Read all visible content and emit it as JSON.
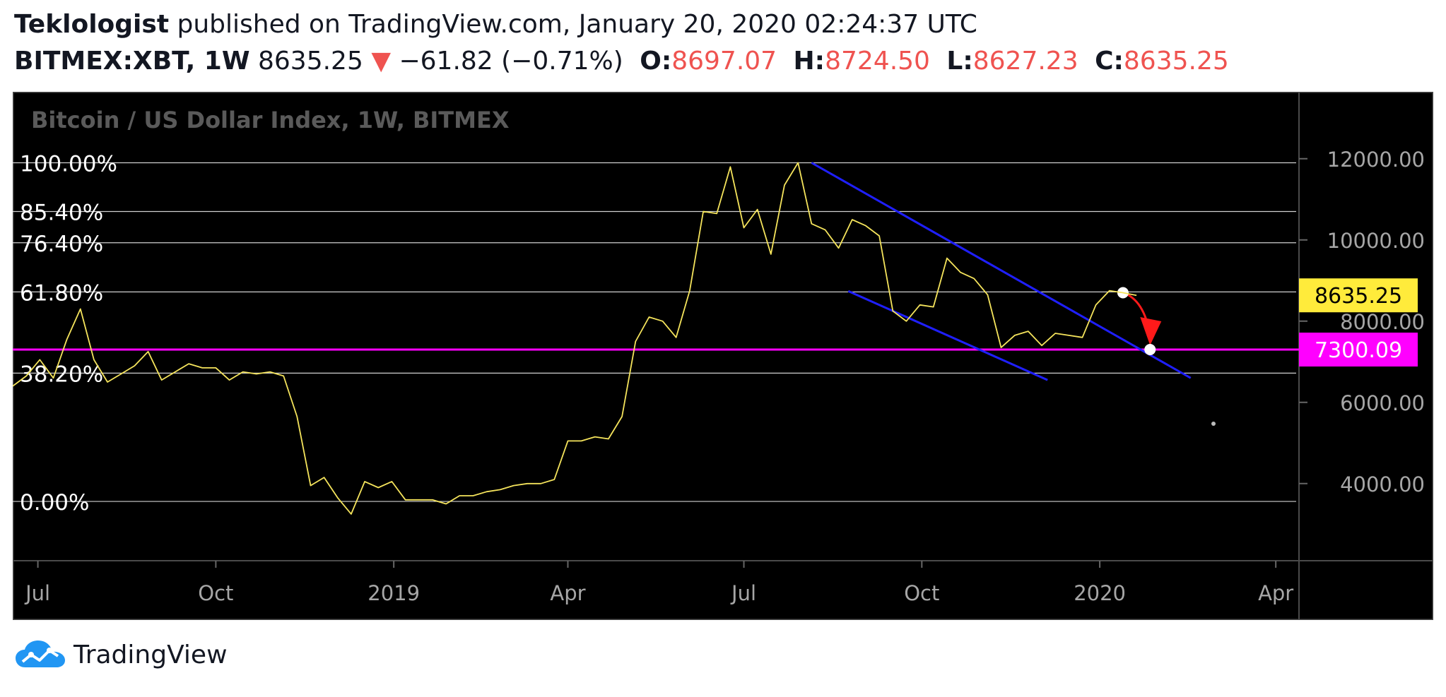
{
  "header": {
    "author": "Teklologist",
    "published_text": "published on TradingView.com, January 20, 2020 02:24:37 UTC",
    "symbol": "BITMEX:XBT, 1W",
    "last": "8635.25",
    "change_arrow": "▼",
    "change": "−61.82 (−0.71%)",
    "ohlc": [
      {
        "key": "O:",
        "value": "8697.07"
      },
      {
        "key": "H:",
        "value": "8724.50"
      },
      {
        "key": "L:",
        "value": "8627.23"
      },
      {
        "key": "C:",
        "value": "8635.25"
      }
    ]
  },
  "footer": {
    "brand": "TradingView",
    "icon": "tradingview-cloud-logo-icon"
  },
  "colors": {
    "chart_bg": "#000000",
    "price_line": "#f5e45c",
    "fib_line": "#d0d0d0",
    "support_line": "#ff00ff",
    "channel": "#1f1fff",
    "arrow": "#ff1a1a",
    "last_price_badge": "#ffeb3b",
    "support_badge": "#ff00ff",
    "axis_text": "#a6a6a6",
    "border": "#4a4a4a"
  },
  "chart_data": {
    "type": "line",
    "title": "Bitcoin / US Dollar Index, 1W, BITMEX",
    "y_axis": {
      "min": 2100,
      "max": 13300,
      "ticks": [
        "12000.00",
        "10000.00",
        "8000.00",
        "6000.00",
        "4000.00"
      ]
    },
    "x_axis": {
      "start": "2018-06-18",
      "end": "2020-04-13",
      "ticks": [
        {
          "label": "Jul",
          "date": "2018-07-01"
        },
        {
          "label": "Oct",
          "date": "2018-10-01"
        },
        {
          "label": "2019",
          "date": "2019-01-01"
        },
        {
          "label": "Apr",
          "date": "2019-04-01"
        },
        {
          "label": "Jul",
          "date": "2019-07-01"
        },
        {
          "label": "Oct",
          "date": "2019-10-01"
        },
        {
          "label": "2020",
          "date": "2020-01-01"
        },
        {
          "label": "Apr",
          "date": "2020-04-01"
        }
      ]
    },
    "series": [
      {
        "x": [
          "2018-06-18",
          "2018-06-25",
          "2018-07-02",
          "2018-07-09",
          "2018-07-16",
          "2018-07-23",
          "2018-07-30",
          "2018-08-06",
          "2018-08-13",
          "2018-08-20",
          "2018-08-27",
          "2018-09-03",
          "2018-09-10",
          "2018-09-17",
          "2018-09-24",
          "2018-10-01",
          "2018-10-08",
          "2018-10-15",
          "2018-10-22",
          "2018-10-29",
          "2018-11-05",
          "2018-11-12",
          "2018-11-19",
          "2018-11-26",
          "2018-12-03",
          "2018-12-10",
          "2018-12-17",
          "2018-12-24",
          "2018-12-31",
          "2019-01-07",
          "2019-01-14",
          "2019-01-21",
          "2019-01-28",
          "2019-02-04",
          "2019-02-11",
          "2019-02-18",
          "2019-02-25",
          "2019-03-04",
          "2019-03-11",
          "2019-03-18",
          "2019-03-25",
          "2019-04-01",
          "2019-04-08",
          "2019-04-15",
          "2019-04-22",
          "2019-04-29",
          "2019-05-06",
          "2019-05-13",
          "2019-05-20",
          "2019-05-27",
          "2019-06-03",
          "2019-06-10",
          "2019-06-17",
          "2019-06-24",
          "2019-07-01",
          "2019-07-08",
          "2019-07-15",
          "2019-07-22",
          "2019-07-29",
          "2019-08-05",
          "2019-08-12",
          "2019-08-19",
          "2019-08-26",
          "2019-09-02",
          "2019-09-09",
          "2019-09-16",
          "2019-09-23",
          "2019-09-30",
          "2019-10-07",
          "2019-10-14",
          "2019-10-21",
          "2019-10-28",
          "2019-11-04",
          "2019-11-11",
          "2019-11-18",
          "2019-11-25",
          "2019-12-02",
          "2019-12-09",
          "2019-12-16",
          "2019-12-23",
          "2019-12-30",
          "2020-01-06",
          "2020-01-13",
          "2020-01-20"
        ],
        "values": [
          6400,
          6650,
          7050,
          6600,
          7550,
          8300,
          7050,
          6500,
          6700,
          6900,
          7250,
          6550,
          6750,
          6950,
          6850,
          6850,
          6550,
          6750,
          6700,
          6750,
          6650,
          5650,
          3950,
          4150,
          3650,
          3250,
          4050,
          3900,
          4050,
          3600,
          3600,
          3600,
          3500,
          3700,
          3700,
          3800,
          3850,
          3950,
          4000,
          4000,
          4100,
          5050,
          5050,
          5150,
          5100,
          5650,
          7500,
          8100,
          8000,
          7600,
          8750,
          10700,
          10650,
          11800,
          10300,
          10750,
          9650,
          11350,
          11900,
          10400,
          10250,
          9800,
          10500,
          10350,
          10100,
          8250,
          8000,
          8400,
          8350,
          9550,
          9200,
          9050,
          8650,
          7350,
          7650,
          7750,
          7400,
          7700,
          7650,
          7600,
          8400,
          8750,
          8700,
          8635.25
        ]
      }
    ],
    "annotations": {
      "fib_levels": [
        {
          "label": "100.00%",
          "price": 11900
        },
        {
          "label": "85.40%",
          "price": 10700
        },
        {
          "label": "76.40%",
          "price": 9930
        },
        {
          "label": "61.80%",
          "price": 8720
        },
        {
          "label": "38.20%",
          "price": 6720
        },
        {
          "label": "0.00%",
          "price": 3560
        }
      ],
      "support": {
        "price": 7300.09,
        "label": "7300.09"
      },
      "last_price": {
        "price": 8635.25,
        "label": "8635.25"
      },
      "channel_upper": [
        [
          "2019-08-05",
          11900
        ],
        [
          "2020-02-17",
          6600
        ]
      ],
      "channel_lower": [
        [
          "2019-08-24",
          8740
        ],
        [
          "2019-12-05",
          6550
        ]
      ],
      "projection_arrow": [
        [
          "2020-01-13",
          8700
        ],
        [
          "2020-01-27",
          7300
        ]
      ]
    }
  }
}
